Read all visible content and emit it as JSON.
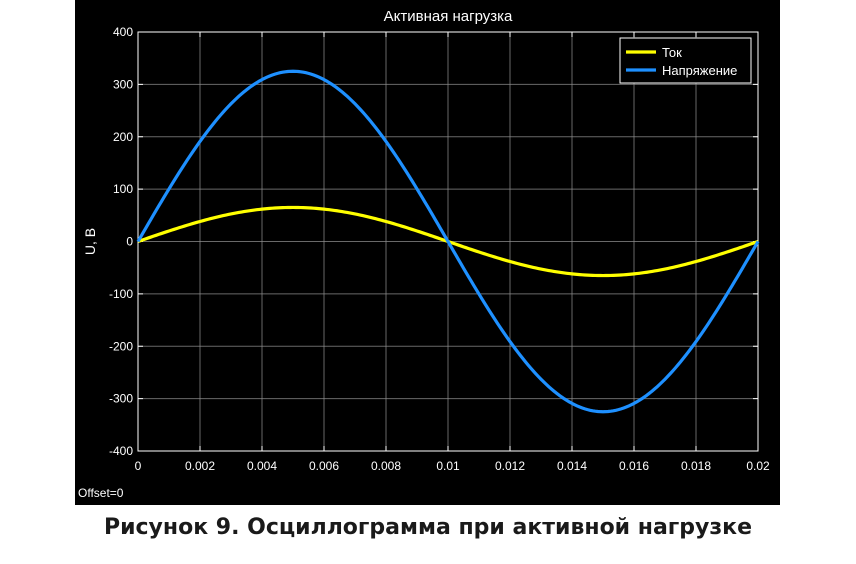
{
  "caption": "Рисунок 9. Осциллограмма при активной нагрузке",
  "offset_text": "Offset=0",
  "colors": {
    "background": "#000000",
    "grid": "#8c8c8c",
    "axes": "#ffffff",
    "current": "#ffff00",
    "voltage": "#1e90ff"
  },
  "chart_data": {
    "type": "line",
    "title": "Активная нагрузка",
    "xlabel": "",
    "ylabel": "U, B",
    "xlim": [
      0,
      0.02
    ],
    "ylim": [
      -400,
      400
    ],
    "grid": true,
    "legend_position": "top-right",
    "x_ticks": [
      "0",
      "0.002",
      "0.004",
      "0.006",
      "0.008",
      "0.01",
      "0.012",
      "0.014",
      "0.016",
      "0.018",
      "0.02"
    ],
    "y_ticks": [
      "400",
      "300",
      "200",
      "100",
      "0",
      "-100",
      "-200",
      "-300",
      "-400"
    ],
    "series": [
      {
        "name": "Ток",
        "color": "#ffff00",
        "function": "sine",
        "amplitude": 65,
        "frequency_hz": 50,
        "phase": 0,
        "x": [
          0,
          0.0025,
          0.005,
          0.0075,
          0.01,
          0.0125,
          0.015,
          0.0175,
          0.02
        ],
        "values": [
          0,
          46,
          65,
          46,
          0,
          -46,
          -65,
          -46,
          0
        ]
      },
      {
        "name": "Напряжение",
        "color": "#1e90ff",
        "function": "sine",
        "amplitude": 325,
        "frequency_hz": 50,
        "phase": 0,
        "x": [
          0,
          0.0025,
          0.005,
          0.0075,
          0.01,
          0.0125,
          0.015,
          0.0175,
          0.02
        ],
        "values": [
          0,
          230,
          325,
          230,
          0,
          -230,
          -325,
          -230,
          0
        ]
      }
    ]
  }
}
